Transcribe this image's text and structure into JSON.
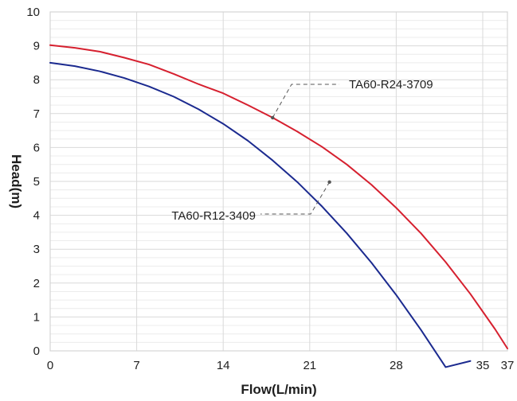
{
  "chart_data": {
    "type": "line",
    "title": "",
    "xlabel": "Flow(L/min)",
    "ylabel": "Head(m)",
    "xlim": [
      0,
      37
    ],
    "ylim": [
      0,
      10
    ],
    "x_ticks": [
      0,
      7,
      14,
      21,
      28,
      35,
      37
    ],
    "x_tick_labels": [
      "0",
      "7",
      "14",
      "21",
      "28",
      "35",
      "37"
    ],
    "y_ticks": [
      0,
      1,
      2,
      3,
      4,
      5,
      6,
      7,
      8,
      9,
      10
    ],
    "y_tick_labels": [
      "0",
      "1",
      "2",
      "3",
      "4",
      "5",
      "6",
      "7",
      "8",
      "9",
      "10"
    ],
    "grid": true,
    "series": [
      {
        "name": "TA60-R24-3709",
        "color": "#d6202f",
        "x": [
          0,
          2,
          4,
          6,
          8,
          10,
          12,
          14,
          16,
          18,
          20,
          22,
          24,
          26,
          28,
          30,
          32,
          34,
          36,
          37
        ],
        "y": [
          9.02,
          8.94,
          8.83,
          8.65,
          8.45,
          8.17,
          7.87,
          7.6,
          7.25,
          6.88,
          6.47,
          6.02,
          5.5,
          4.9,
          4.22,
          3.47,
          2.62,
          1.68,
          0.64,
          0.07
        ]
      },
      {
        "name": "TA60-R12-3409",
        "color": "#1b2a8f",
        "x": [
          0,
          2,
          4,
          6,
          8,
          10,
          12,
          14,
          16,
          18,
          20,
          22,
          24,
          26,
          28,
          30,
          32,
          34
        ],
        "y": [
          8.5,
          8.4,
          8.25,
          8.05,
          7.8,
          7.5,
          7.13,
          6.7,
          6.2,
          5.62,
          4.98,
          4.26,
          3.47,
          2.6,
          1.65,
          0.62,
          -0.48,
          -0.3
        ]
      }
    ],
    "annotations": [
      {
        "text": "TA60-R24-3709",
        "series": "TA60-R24-3709",
        "point": [
          18,
          6.88
        ]
      },
      {
        "text": "TA60-R12-3409",
        "series": "TA60-R12-3409",
        "point": [
          22.6,
          4.98
        ]
      }
    ],
    "colors": {
      "frame": "#d4d4d4",
      "major_grid": "#d9d9d9",
      "minor_grid": "#ececec",
      "text": "#1f1f1f",
      "leader": "#555555"
    }
  }
}
